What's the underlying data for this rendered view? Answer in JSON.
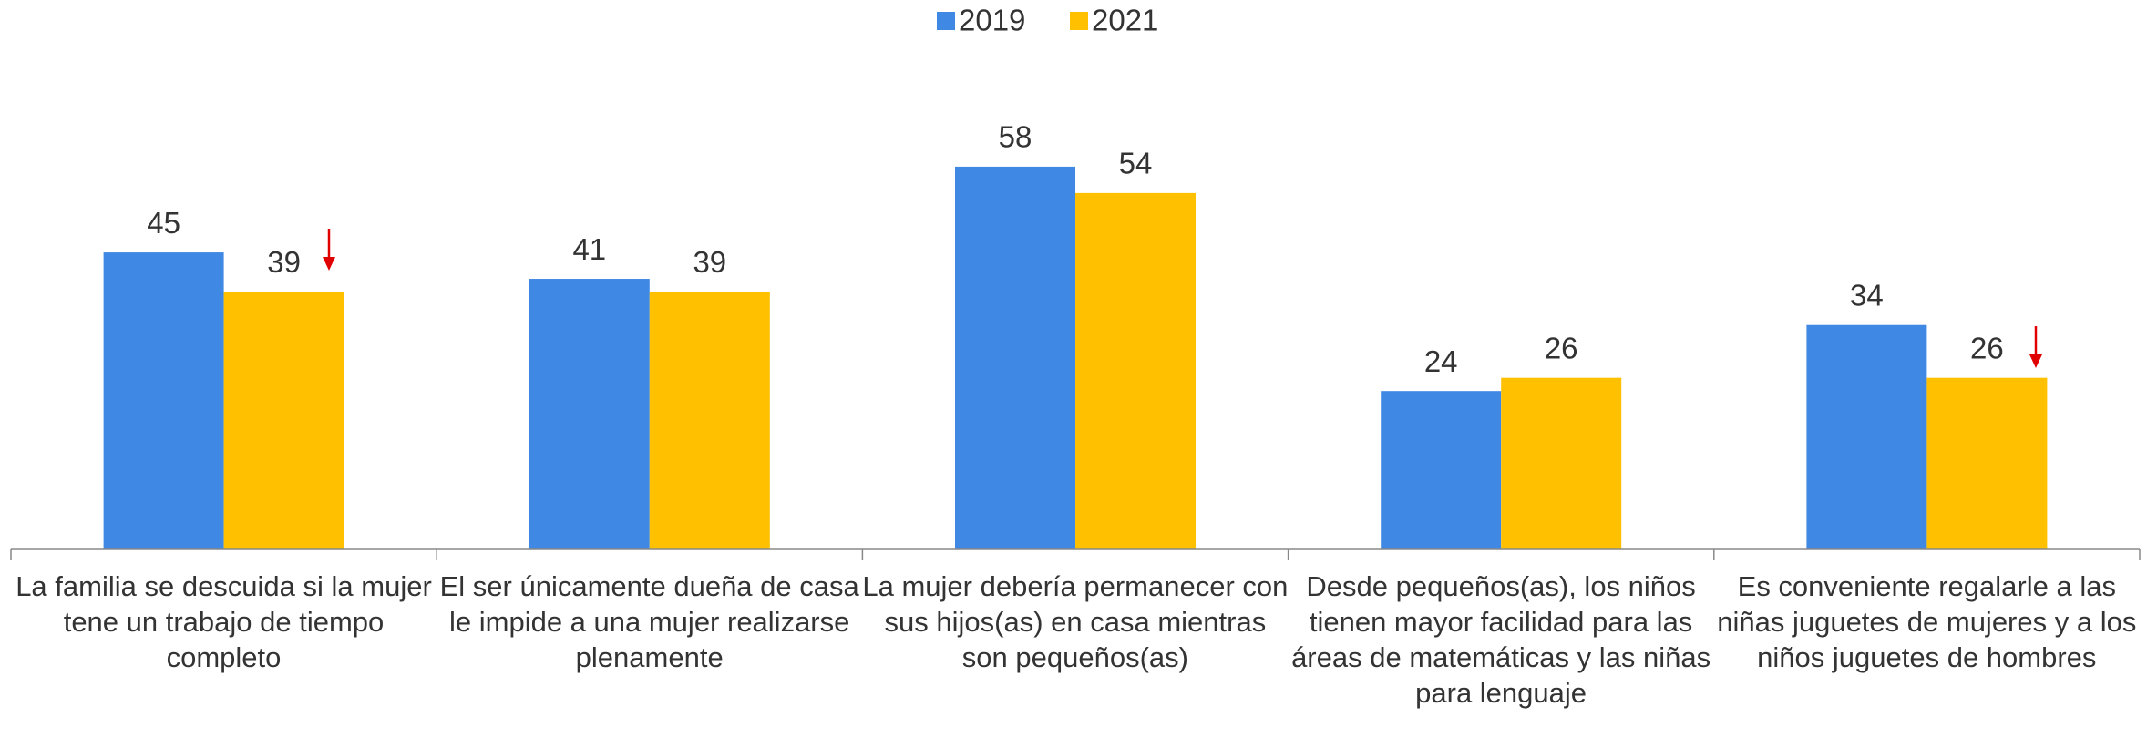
{
  "chart_data": {
    "type": "bar",
    "categories": [
      "La familia se descuida si la mujer tene un trabajo de tiempo completo",
      "El ser únicamente dueña de casa le impide a una mujer realizarse plenamente",
      "La mujer debería permanecer con sus hijos(as) en casa mientras son pequeños(as)",
      "Desde pequeños(as), los niños tienen mayor facilidad para las áreas de matemáticas y las niñas para lenguaje",
      "Es conveniente regalarle a las niñas juguetes de mujeres y a los niños juguetes de hombres"
    ],
    "series": [
      {
        "name": "2019",
        "color": "#3f88e3",
        "values": [
          45,
          41,
          58,
          24,
          34
        ]
      },
      {
        "name": "2021",
        "color": "#ffc000",
        "values": [
          39,
          39,
          54,
          26,
          26
        ]
      }
    ],
    "ylim": [
      0,
      70
    ],
    "legend": "top"
  }
}
